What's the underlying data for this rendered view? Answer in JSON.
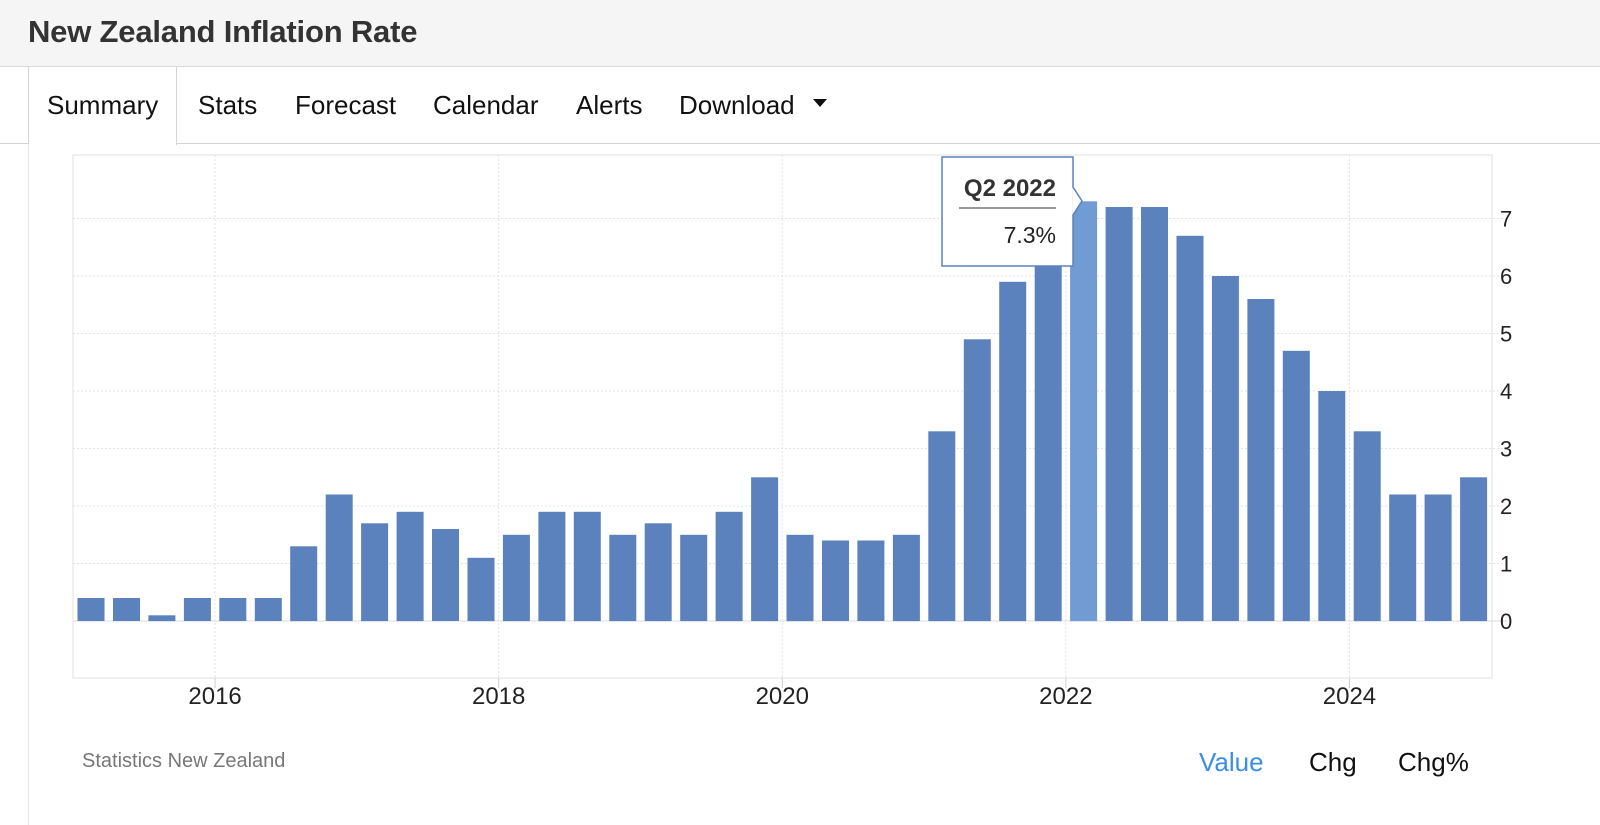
{
  "header": {
    "title": "New Zealand Inflation Rate"
  },
  "tabs": [
    {
      "label": "Summary"
    },
    {
      "label": "Stats"
    },
    {
      "label": "Forecast"
    },
    {
      "label": "Calendar"
    },
    {
      "label": "Alerts"
    },
    {
      "label": "Download"
    }
  ],
  "footer": {
    "source": "Statistics New Zealand",
    "modes": [
      "Value",
      "Chg",
      "Chg%"
    ]
  },
  "colors": {
    "bar": "#5b82bd",
    "bar_highlight": "#719bd3",
    "active_mode": "#3a8ee6"
  },
  "chart_data": {
    "type": "bar",
    "x_start": "2015Q2",
    "categories": [
      "Q2 2015",
      "Q3 2015",
      "Q4 2015",
      "Q1 2016",
      "Q2 2016",
      "Q3 2016",
      "Q4 2016",
      "Q1 2017",
      "Q2 2017",
      "Q3 2017",
      "Q4 2017",
      "Q1 2018",
      "Q2 2018",
      "Q3 2018",
      "Q4 2018",
      "Q1 2019",
      "Q2 2019",
      "Q3 2019",
      "Q4 2019",
      "Q1 2020",
      "Q2 2020",
      "Q3 2020",
      "Q4 2020",
      "Q1 2021",
      "Q2 2021",
      "Q3 2021",
      "Q4 2021",
      "Q1 2022",
      "Q2 2022",
      "Q3 2022",
      "Q4 2022",
      "Q1 2023",
      "Q2 2023",
      "Q3 2023",
      "Q4 2023",
      "Q1 2024",
      "Q2 2024",
      "Q3 2024",
      "Q4 2024",
      "Q1 2025"
    ],
    "values": [
      0.4,
      0.4,
      0.1,
      0.4,
      0.4,
      0.4,
      1.3,
      2.2,
      1.7,
      1.9,
      1.6,
      1.1,
      1.5,
      1.9,
      1.9,
      1.5,
      1.7,
      1.5,
      1.9,
      2.5,
      1.5,
      1.4,
      1.4,
      1.5,
      3.3,
      4.9,
      5.9,
      6.9,
      7.3,
      7.2,
      7.2,
      6.7,
      6.0,
      5.6,
      4.7,
      4.0,
      3.3,
      2.2,
      2.2,
      2.5
    ],
    "highlight_index": 28,
    "tooltip": {
      "label": "Q2 2022",
      "value": "7.3%"
    },
    "x_ticks": [
      "2016",
      "2018",
      "2020",
      "2022",
      "2024"
    ],
    "y_ticks": [
      0,
      1,
      2,
      3,
      4,
      5,
      6,
      7
    ],
    "ylim": [
      -1,
      8
    ],
    "grid": true,
    "y_axis_position": "right"
  }
}
